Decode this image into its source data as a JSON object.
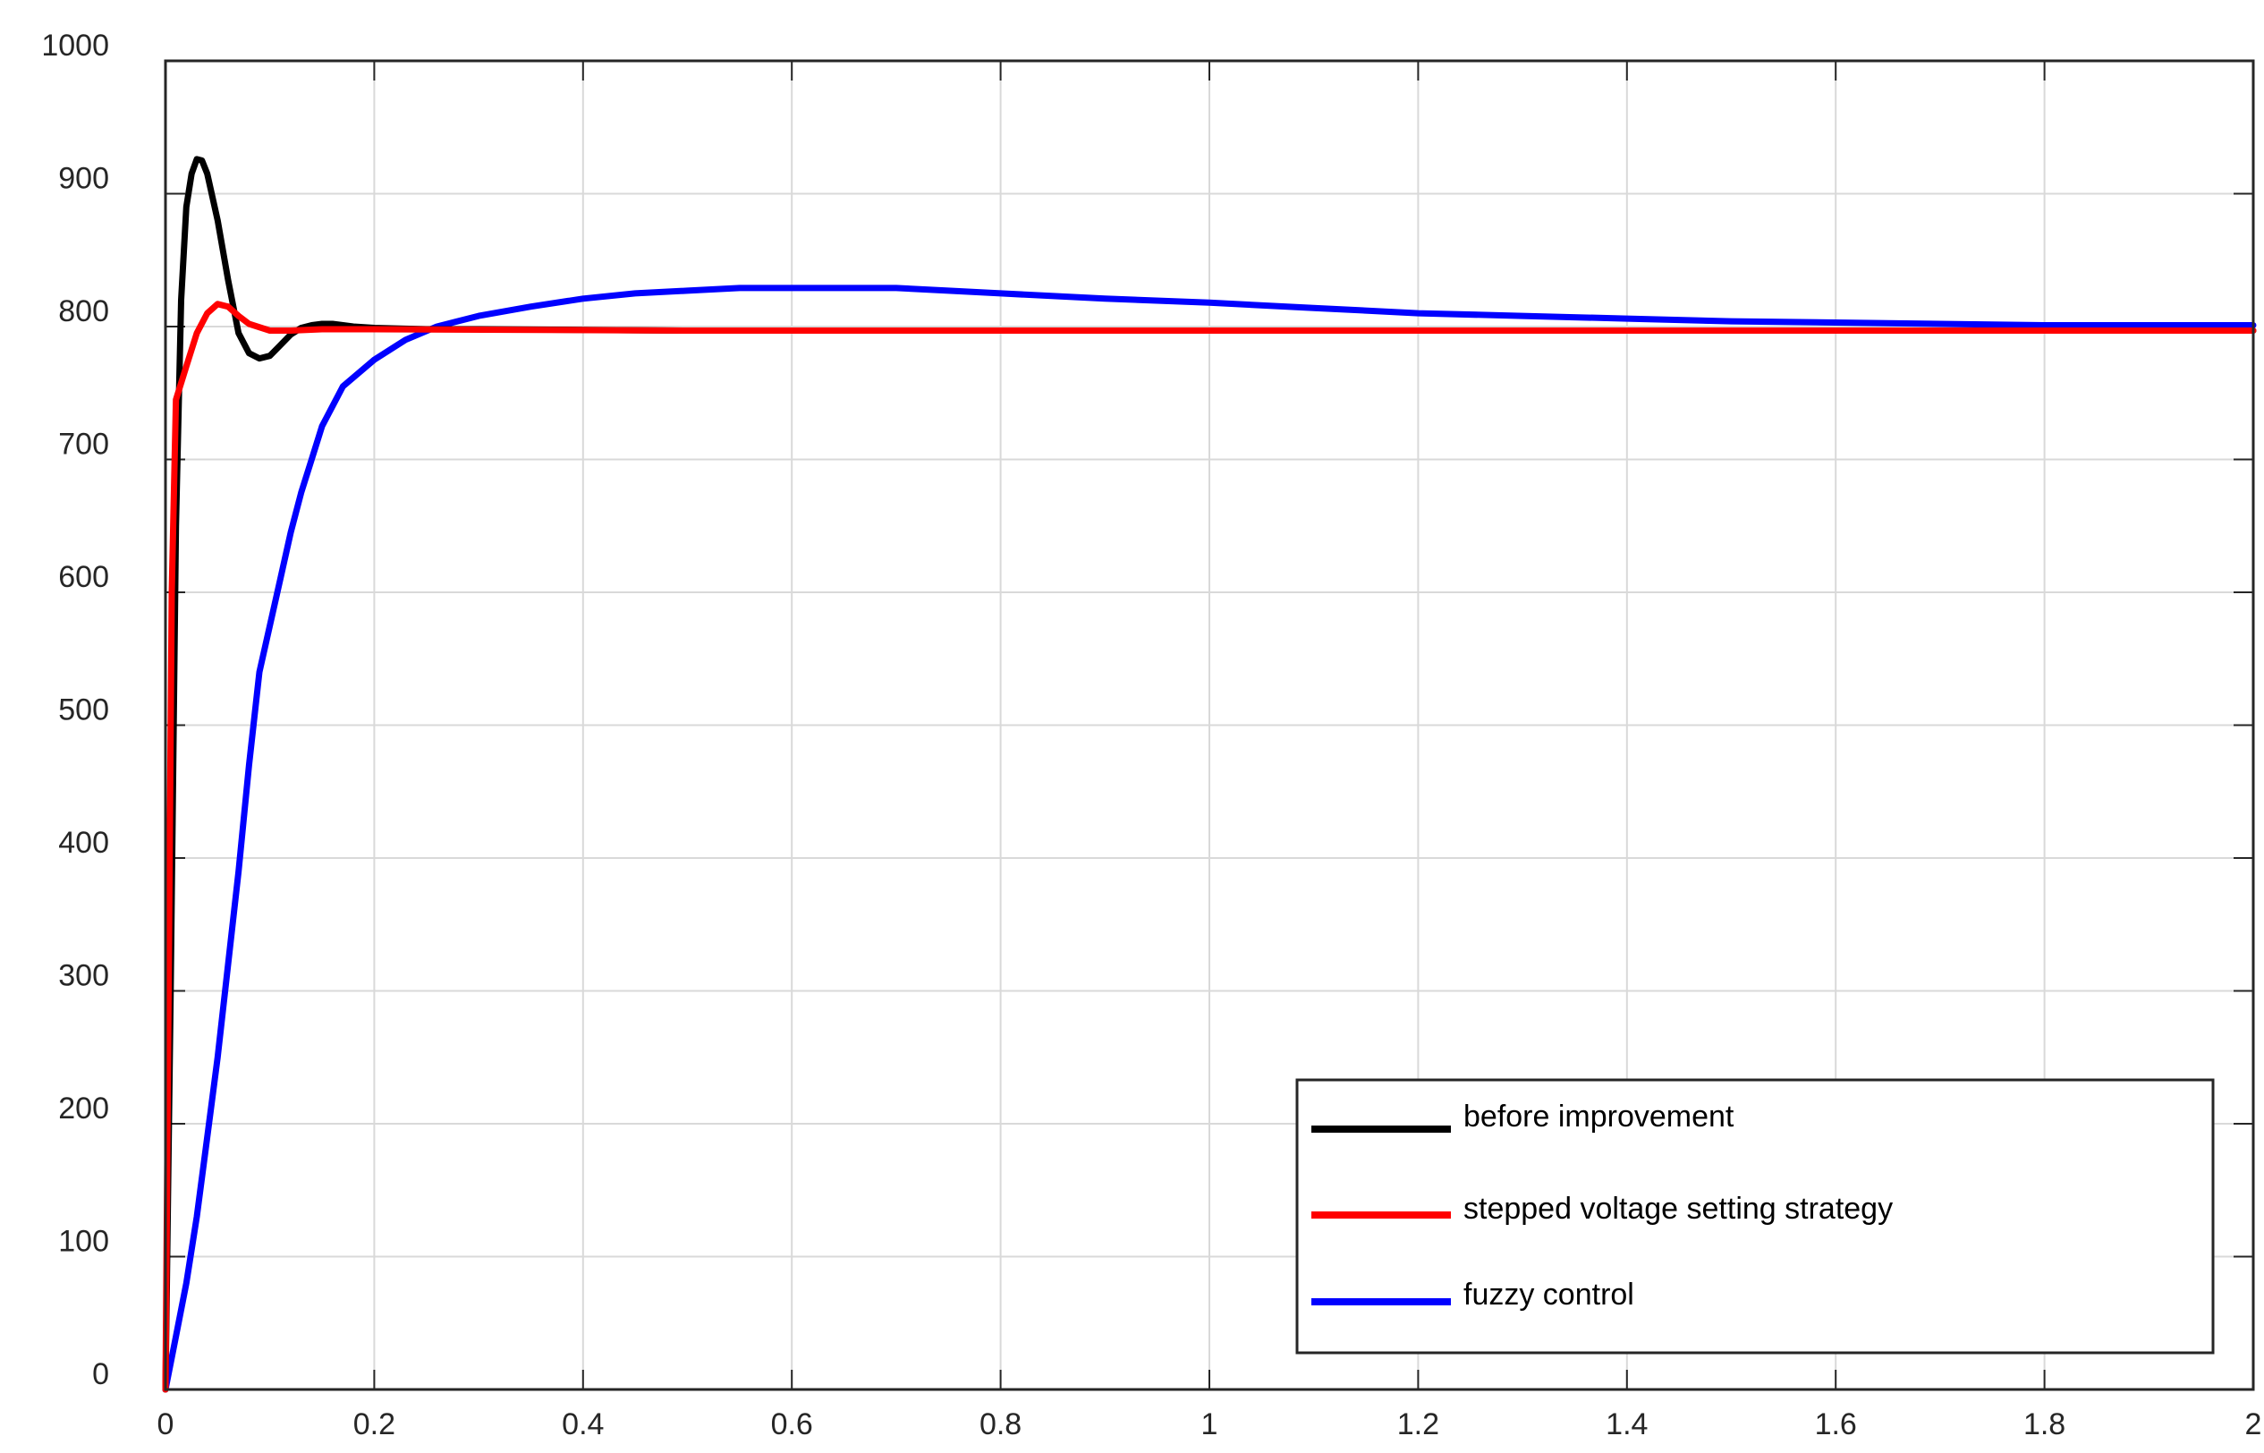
{
  "chart_data": {
    "type": "line",
    "title": "",
    "xlabel": "",
    "ylabel": "",
    "xlim": [
      0,
      2
    ],
    "ylim": [
      0,
      1000
    ],
    "x_ticks": [
      "0",
      "0.2",
      "0.4",
      "0.6",
      "0.8",
      "1",
      "1.2",
      "1.4",
      "1.6",
      "1.8",
      "2"
    ],
    "y_ticks": [
      "0",
      "100",
      "200",
      "300",
      "400",
      "500",
      "600",
      "700",
      "800",
      "900",
      "1000"
    ],
    "grid": true,
    "legend_position": "bottom-right",
    "series": [
      {
        "name": "before improvement",
        "color": "#000000",
        "points": [
          [
            0,
            0
          ],
          [
            0.005,
            300
          ],
          [
            0.01,
            650
          ],
          [
            0.015,
            820
          ],
          [
            0.02,
            890
          ],
          [
            0.025,
            915
          ],
          [
            0.03,
            926
          ],
          [
            0.035,
            925
          ],
          [
            0.04,
            915
          ],
          [
            0.05,
            880
          ],
          [
            0.06,
            835
          ],
          [
            0.07,
            795
          ],
          [
            0.08,
            780
          ],
          [
            0.09,
            776
          ],
          [
            0.1,
            778
          ],
          [
            0.11,
            786
          ],
          [
            0.12,
            794
          ],
          [
            0.13,
            799
          ],
          [
            0.14,
            801
          ],
          [
            0.15,
            802
          ],
          [
            0.16,
            802
          ],
          [
            0.18,
            800
          ],
          [
            0.2,
            799
          ],
          [
            0.25,
            798
          ],
          [
            0.3,
            798
          ],
          [
            0.5,
            797
          ],
          [
            1.0,
            797
          ],
          [
            1.5,
            797
          ],
          [
            2.0,
            797
          ]
        ]
      },
      {
        "name": "stepped voltage setting strategy",
        "color": "#ff0000",
        "points": [
          [
            0,
            0
          ],
          [
            0.003,
            300
          ],
          [
            0.006,
            600
          ],
          [
            0.01,
            745
          ],
          [
            0.02,
            770
          ],
          [
            0.03,
            795
          ],
          [
            0.04,
            810
          ],
          [
            0.05,
            817
          ],
          [
            0.06,
            815
          ],
          [
            0.07,
            808
          ],
          [
            0.08,
            802
          ],
          [
            0.1,
            797
          ],
          [
            0.12,
            797
          ],
          [
            0.15,
            798
          ],
          [
            0.2,
            798
          ],
          [
            0.5,
            797
          ],
          [
            1.0,
            797
          ],
          [
            1.5,
            797
          ],
          [
            2.0,
            797
          ]
        ]
      },
      {
        "name": "fuzzy control",
        "color": "#0000ff",
        "points": [
          [
            0,
            0
          ],
          [
            0.01,
            40
          ],
          [
            0.02,
            80
          ],
          [
            0.03,
            130
          ],
          [
            0.04,
            190
          ],
          [
            0.05,
            250
          ],
          [
            0.06,
            320
          ],
          [
            0.07,
            390
          ],
          [
            0.08,
            470
          ],
          [
            0.09,
            540
          ],
          [
            0.1,
            575
          ],
          [
            0.11,
            610
          ],
          [
            0.12,
            645
          ],
          [
            0.13,
            675
          ],
          [
            0.14,
            700
          ],
          [
            0.15,
            725
          ],
          [
            0.17,
            755
          ],
          [
            0.2,
            775
          ],
          [
            0.23,
            790
          ],
          [
            0.26,
            800
          ],
          [
            0.3,
            808
          ],
          [
            0.35,
            815
          ],
          [
            0.4,
            821
          ],
          [
            0.45,
            825
          ],
          [
            0.5,
            827
          ],
          [
            0.55,
            829
          ],
          [
            0.6,
            829
          ],
          [
            0.65,
            829
          ],
          [
            0.7,
            829
          ],
          [
            0.75,
            827
          ],
          [
            0.8,
            825
          ],
          [
            0.9,
            821
          ],
          [
            1.0,
            818
          ],
          [
            1.1,
            814
          ],
          [
            1.2,
            810
          ],
          [
            1.3,
            808
          ],
          [
            1.4,
            806
          ],
          [
            1.5,
            804
          ],
          [
            1.6,
            803
          ],
          [
            1.7,
            802
          ],
          [
            1.8,
            801
          ],
          [
            1.9,
            801
          ],
          [
            2.0,
            801
          ]
        ]
      }
    ]
  }
}
